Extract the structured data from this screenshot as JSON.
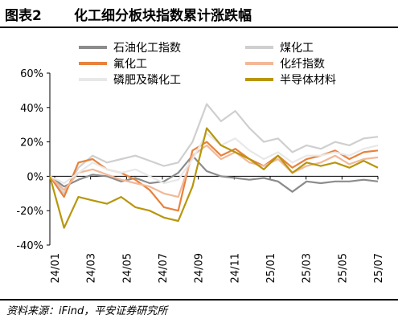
{
  "figure": {
    "label": "图表2",
    "title": "化工细分板块指数累计涨跌幅",
    "source": "资料来源：iFind，平安证券研究所"
  },
  "chart_data": {
    "type": "line",
    "x_ticks": [
      "24/01",
      "24/03",
      "24/05",
      "24/07",
      "24/09",
      "24/11",
      "25/01",
      "25/03",
      "25/05",
      "25/07"
    ],
    "y_ticks": [
      "60%",
      "40%",
      "20%",
      "0%",
      "-20%",
      "-40%"
    ],
    "ylim": [
      -40,
      60
    ],
    "y_unit": "%",
    "grid": false,
    "legend_position": "top",
    "series": [
      {
        "name": "石油化工指数",
        "color": "#8c8c8c",
        "values": [
          0,
          -6,
          -2,
          1,
          0,
          -3,
          -1,
          -4,
          -3,
          2,
          12,
          3,
          0,
          -1,
          -2,
          -1,
          -3,
          -9,
          -3,
          -4,
          -3,
          -3,
          -2,
          -3
        ]
      },
      {
        "name": "煤化工",
        "color": "#cfcfcf",
        "values": [
          0,
          -10,
          5,
          12,
          8,
          10,
          12,
          9,
          6,
          8,
          20,
          42,
          32,
          38,
          28,
          20,
          22,
          14,
          18,
          16,
          20,
          18,
          22,
          23
        ]
      },
      {
        "name": "氟化工",
        "color": "#e8823c",
        "values": [
          0,
          -12,
          8,
          10,
          4,
          2,
          -2,
          -8,
          -18,
          -20,
          15,
          20,
          12,
          16,
          10,
          6,
          12,
          5,
          10,
          12,
          15,
          10,
          14,
          15
        ]
      },
      {
        "name": "化纤指数",
        "color": "#f2b898",
        "values": [
          0,
          -8,
          2,
          4,
          1,
          -2,
          -4,
          -6,
          -10,
          -12,
          12,
          18,
          10,
          14,
          8,
          6,
          10,
          2,
          6,
          8,
          12,
          7,
          10,
          11
        ]
      },
      {
        "name": "磷肥及磷化工",
        "color": "#e8e8e8",
        "values": [
          0,
          -4,
          2,
          8,
          4,
          2,
          4,
          0,
          -4,
          -2,
          10,
          25,
          18,
          22,
          15,
          10,
          14,
          8,
          12,
          12,
          14,
          12,
          16,
          18
        ]
      },
      {
        "name": "半导体材料",
        "color": "#b8960c",
        "values": [
          0,
          -30,
          -12,
          -14,
          -16,
          -12,
          -18,
          -20,
          -24,
          -26,
          -6,
          28,
          18,
          14,
          10,
          4,
          12,
          2,
          8,
          6,
          8,
          5,
          9,
          5
        ]
      }
    ]
  }
}
